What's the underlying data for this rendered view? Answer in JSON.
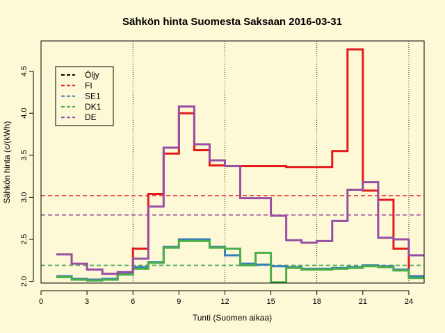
{
  "chart_data": {
    "type": "line",
    "title": "Sähkön hinta Suomesta Saksaan 2016-03-31",
    "xlabel": "Tunti (Suomen aikaa)",
    "ylabel": "Sähkön hinta (c/(kWh)",
    "xlim": [
      0,
      25
    ],
    "ylim": [
      1.98,
      4.86
    ],
    "x_ticks": [
      0,
      3,
      6,
      9,
      12,
      15,
      18,
      21,
      24
    ],
    "y_ticks": [
      2.0,
      2.5,
      3.0,
      3.5,
      4.0,
      4.5
    ],
    "vertical_gridlines": [
      6,
      12,
      18,
      24
    ],
    "step_style": "step-post",
    "legend_position": "top-left",
    "legend": [
      {
        "name": "Öljy",
        "color": "#000000"
      },
      {
        "name": "FI",
        "color": "#e41a1c"
      },
      {
        "name": "SE1",
        "color": "#377eb8"
      },
      {
        "name": "DK1",
        "color": "#4daf4a"
      },
      {
        "name": "DE",
        "color": "#984ea3"
      }
    ],
    "series": [
      {
        "name": "FI",
        "color": "#e41a1c",
        "x": [
          1,
          2,
          3,
          4,
          5,
          6,
          7,
          8,
          9,
          10,
          11,
          12,
          13,
          14,
          15,
          16,
          17,
          18,
          19,
          20,
          21,
          22,
          23,
          24,
          25
        ],
        "values": [
          2.06,
          2.03,
          2.02,
          2.03,
          2.09,
          2.39,
          3.04,
          3.52,
          4.0,
          3.56,
          3.38,
          3.37,
          3.37,
          3.37,
          3.37,
          3.36,
          3.36,
          3.36,
          3.55,
          4.76,
          3.08,
          2.97,
          2.39,
          2.06,
          2.06
        ]
      },
      {
        "name": "SE1",
        "color": "#377eb8",
        "x": [
          1,
          2,
          3,
          4,
          5,
          6,
          7,
          8,
          9,
          10,
          11,
          12,
          13,
          14,
          15,
          16,
          17,
          18,
          19,
          20,
          21,
          22,
          23,
          24,
          25
        ],
        "values": [
          2.06,
          2.03,
          2.02,
          2.03,
          2.09,
          2.17,
          2.23,
          2.41,
          2.5,
          2.5,
          2.41,
          2.31,
          2.21,
          2.2,
          2.18,
          2.17,
          2.15,
          2.15,
          2.16,
          2.17,
          2.19,
          2.18,
          2.14,
          2.06,
          2.06
        ]
      },
      {
        "name": "DK1",
        "color": "#4daf4a",
        "x": [
          1,
          2,
          3,
          4,
          5,
          6,
          7,
          8,
          9,
          10,
          11,
          12,
          13,
          14,
          15,
          16,
          17,
          18,
          19,
          20,
          21,
          22,
          23,
          24,
          25
        ],
        "values": [
          2.05,
          2.02,
          2.01,
          2.02,
          2.08,
          2.15,
          2.22,
          2.4,
          2.48,
          2.48,
          2.4,
          2.39,
          2.19,
          2.34,
          1.99,
          2.16,
          2.14,
          2.14,
          2.15,
          2.16,
          2.18,
          2.17,
          2.13,
          2.04,
          2.04
        ]
      },
      {
        "name": "DE",
        "color": "#984ea3",
        "x": [
          1,
          2,
          3,
          4,
          5,
          6,
          7,
          8,
          9,
          10,
          11,
          12,
          13,
          14,
          15,
          16,
          17,
          18,
          19,
          20,
          21,
          22,
          23,
          24,
          25
        ],
        "values": [
          2.32,
          2.21,
          2.14,
          2.09,
          2.11,
          2.27,
          2.89,
          3.59,
          4.08,
          3.63,
          3.44,
          3.37,
          2.99,
          2.99,
          2.78,
          2.49,
          2.46,
          2.48,
          2.72,
          3.09,
          3.18,
          2.52,
          2.5,
          2.31,
          2.31
        ]
      }
    ],
    "reference_lines": [
      {
        "name": "FI",
        "color": "#e41a1c",
        "y": 3.02,
        "style": "dashed"
      },
      {
        "name": "SE1",
        "color": "#377eb8",
        "y": 2.19,
        "style": "dashed"
      },
      {
        "name": "DK1",
        "color": "#4daf4a",
        "y": 2.19,
        "style": "dashed"
      },
      {
        "name": "DE",
        "color": "#984ea3",
        "y": 2.79,
        "style": "dashed"
      }
    ]
  }
}
